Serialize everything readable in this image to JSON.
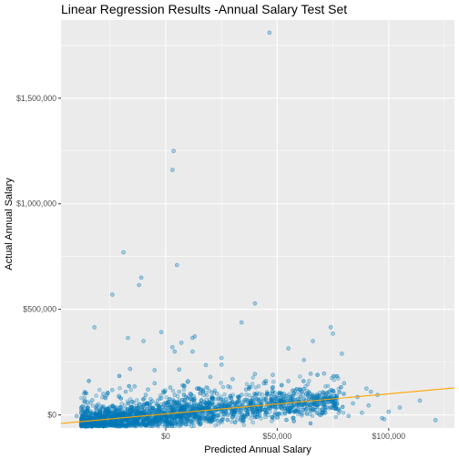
{
  "chart_data": {
    "type": "scatter",
    "title": "Linear Regression Results -Annual Salary Test Set",
    "xlabel": "Predicted Annual Salary",
    "ylabel": "Actual Annual Salary",
    "xlim": [
      -47000,
      129500
    ],
    "ylim": [
      -62000,
      1870000
    ],
    "x_ticks": [
      {
        "value": 0,
        "label": "$0"
      },
      {
        "value": 50000,
        "label": "$50,000"
      },
      {
        "value": 100000,
        "label": "$100,000"
      }
    ],
    "y_ticks": [
      {
        "value": 0,
        "label": "$0"
      },
      {
        "value": 500000,
        "label": "$500,000"
      },
      {
        "value": 1000000,
        "label": "$1,000,000"
      },
      {
        "value": 1500000,
        "label": "$1,500,000"
      }
    ],
    "grid": true,
    "point_color": "#0077b6",
    "line_color": "#ffa500",
    "panel_background": "#ebebeb",
    "regression_line": {
      "x": [
        -47000,
        129500
      ],
      "y": [
        -40000,
        128000
      ]
    },
    "series": [
      {
        "points": [
          [
            46500,
            1810000
          ],
          [
            3500,
            1250000
          ],
          [
            3000,
            1160000
          ],
          [
            5000,
            710000
          ],
          [
            -19000,
            770000
          ],
          [
            -24000,
            570000
          ],
          [
            -11000,
            650000
          ],
          [
            -12000,
            615000
          ],
          [
            40000,
            528000
          ],
          [
            -32000,
            415000
          ],
          [
            34000,
            438000
          ],
          [
            -17000,
            365000
          ],
          [
            -10000,
            350000
          ],
          [
            -2000,
            392000
          ],
          [
            12000,
            365000
          ],
          [
            13000,
            372000
          ],
          [
            7000,
            342000
          ],
          [
            3000,
            320000
          ],
          [
            4000,
            300000
          ],
          [
            12000,
            300000
          ],
          [
            -16000,
            218000
          ],
          [
            -5000,
            212000
          ],
          [
            25000,
            270000
          ],
          [
            25000,
            238000
          ],
          [
            18000,
            236000
          ],
          [
            6000,
            215000
          ],
          [
            40000,
            194000
          ],
          [
            48000,
            190000
          ],
          [
            55000,
            315000
          ],
          [
            66000,
            350000
          ],
          [
            74000,
            415000
          ],
          [
            75000,
            385000
          ],
          [
            79000,
            290000
          ],
          [
            62000,
            260000
          ],
          [
            65000,
            195000
          ],
          [
            71000,
            196000
          ],
          [
            55000,
            160000
          ],
          [
            80000,
            150000
          ],
          [
            90000,
            125000
          ],
          [
            92000,
            110000
          ],
          [
            95000,
            95000
          ],
          [
            86000,
            85000
          ],
          [
            97000,
            -15000
          ],
          [
            98000,
            -20000
          ],
          [
            105000,
            35000
          ],
          [
            114000,
            68000
          ],
          [
            121000,
            -25000
          ],
          [
            100000,
            15000
          ],
          [
            78000,
            20000
          ],
          [
            82000,
            -5000
          ],
          [
            88000,
            10000
          ],
          [
            73000,
            60000
          ],
          [
            66000,
            80000
          ],
          [
            60000,
            120000
          ],
          [
            52000,
            140000
          ],
          [
            44000,
            150000
          ],
          [
            30000,
            170000
          ],
          [
            20000,
            180000
          ],
          [
            10000,
            160000
          ],
          [
            -5000,
            150000
          ],
          [
            -14000,
            135000
          ],
          [
            -24000,
            118000
          ],
          [
            -28000,
            100000
          ],
          [
            -35000,
            60000
          ],
          [
            -38000,
            30000
          ],
          [
            -40000,
            -5000
          ],
          [
            -36000,
            -25000
          ],
          [
            -30000,
            -35000
          ],
          [
            -25000,
            -45000
          ],
          [
            -20000,
            -40000
          ],
          [
            -15000,
            -38000
          ],
          [
            -10000,
            -42000
          ],
          [
            -5000,
            -30000
          ],
          [
            0,
            -25000
          ],
          [
            5000,
            -35000
          ],
          [
            10000,
            -20000
          ],
          [
            15000,
            -30000
          ],
          [
            20000,
            -15000
          ],
          [
            25000,
            -25000
          ],
          [
            30000,
            -10000
          ],
          [
            35000,
            -5000
          ],
          [
            40000,
            0
          ],
          [
            45000,
            10000
          ],
          [
            50000,
            5000
          ],
          [
            55000,
            20000
          ],
          [
            60000,
            15000
          ],
          [
            65000,
            30000
          ],
          [
            70000,
            25000
          ],
          [
            -33000,
            70000
          ],
          [
            -27000,
            80000
          ],
          [
            -21000,
            90000
          ],
          [
            -18000,
            110000
          ],
          [
            -8000,
            120000
          ],
          [
            2000,
            130000
          ],
          [
            8000,
            140000
          ],
          [
            14000,
            125000
          ],
          [
            22000,
            115000
          ],
          [
            28000,
            135000
          ],
          [
            36000,
            120000
          ],
          [
            42000,
            100000
          ],
          [
            48000,
            110000
          ],
          [
            54000,
            90000
          ],
          [
            58000,
            70000
          ],
          [
            62000,
            55000
          ],
          [
            68000,
            45000
          ],
          [
            74000,
            35000
          ],
          [
            -31000,
            -10000
          ],
          [
            -26000,
            5000
          ],
          [
            -22000,
            20000
          ],
          [
            -16000,
            35000
          ],
          [
            -12000,
            50000
          ],
          [
            -6000,
            65000
          ],
          [
            -2000,
            80000
          ],
          [
            4000,
            95000
          ],
          [
            9000,
            85000
          ],
          [
            16000,
            70000
          ],
          [
            21000,
            60000
          ],
          [
            27000,
            75000
          ],
          [
            33000,
            65000
          ],
          [
            38000,
            55000
          ],
          [
            43000,
            45000
          ],
          [
            47000,
            35000
          ],
          [
            52000,
            50000
          ],
          [
            57000,
            40000
          ],
          [
            -37000,
            -20000
          ],
          [
            -29000,
            -30000
          ],
          [
            -23000,
            -20000
          ],
          [
            -19000,
            -10000
          ],
          [
            -13000,
            0
          ],
          [
            -7000,
            10000
          ],
          [
            -3000,
            20000
          ],
          [
            3000,
            15000
          ],
          [
            7000,
            25000
          ],
          [
            12000,
            40000
          ],
          [
            18000,
            30000
          ],
          [
            24000,
            45000
          ],
          [
            31000,
            35000
          ],
          [
            36000,
            25000
          ],
          [
            41000,
            30000
          ],
          [
            46000,
            55000
          ],
          [
            51000,
            70000
          ],
          [
            56000,
            85000
          ],
          [
            63000,
            100000
          ],
          [
            69000,
            90000
          ],
          [
            76000,
            75000
          ],
          [
            84000,
            55000
          ],
          [
            91000,
            45000
          ],
          [
            -9000,
            95000
          ],
          [
            -1000,
            105000
          ],
          [
            6000,
            110000
          ],
          [
            11000,
            100000
          ],
          [
            17000,
            95000
          ],
          [
            23000,
            100000
          ],
          [
            29000,
            90000
          ],
          [
            34000,
            95000
          ],
          [
            39000,
            80000
          ],
          [
            44000,
            75000
          ],
          [
            49000,
            85000
          ],
          [
            53000,
            100000
          ],
          [
            58000,
            115000
          ]
        ]
      }
    ]
  }
}
